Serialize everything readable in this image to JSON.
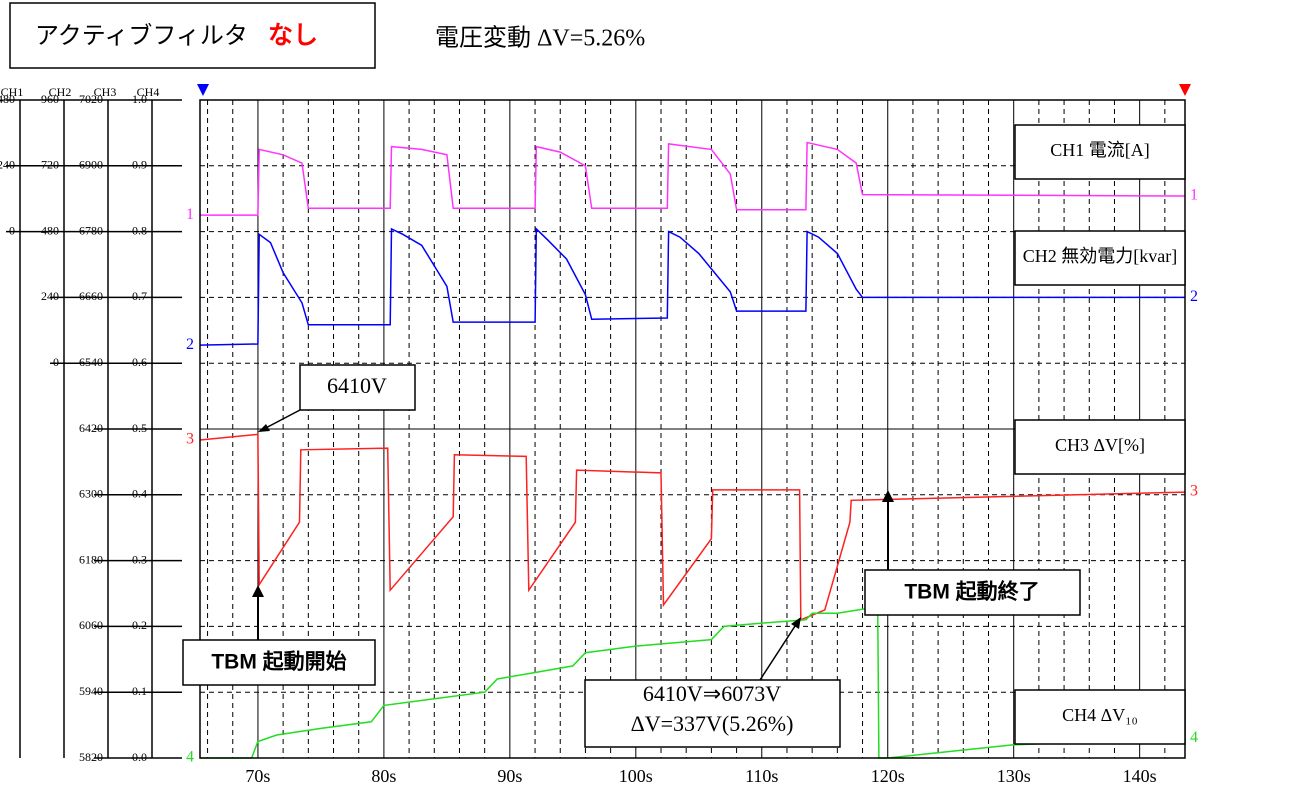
{
  "header": {
    "label": "アクティブフィルタ",
    "state": "なし",
    "summary": "電圧変動 ΔV=5.26%"
  },
  "chart_data": {
    "type": "line",
    "xlim": [
      65.4,
      143.6
    ],
    "xticks": [
      {
        "value": 70,
        "label": "70s"
      },
      {
        "value": 80,
        "label": "80s"
      },
      {
        "value": 90,
        "label": "90s"
      },
      {
        "value": 100,
        "label": "100s"
      },
      {
        "value": 110,
        "label": "110s"
      },
      {
        "value": 120,
        "label": "120s"
      },
      {
        "value": 130,
        "label": "130s"
      },
      {
        "value": 140,
        "label": "140s"
      }
    ],
    "grid": true,
    "series": [
      {
        "name": "CH1 電流[A]",
        "scale_label": "CH1",
        "trace_label": "1",
        "color": "#ff33ff",
        "ylim": [
          -1920,
          480
        ],
        "yticks": [
          480,
          240,
          0
        ],
        "x": [
          65.4,
          70,
          70.1,
          72,
          73.5,
          74,
          80.5,
          80.6,
          83,
          85,
          85.5,
          92,
          92.1,
          94,
          96,
          96.5,
          102.5,
          102.6,
          106,
          107.5,
          108,
          113.5,
          113.6,
          116,
          117.5,
          118,
          143.6
        ],
        "values": [
          60,
          60,
          300,
          280,
          250,
          85,
          85,
          310,
          300,
          280,
          85,
          85,
          310,
          290,
          240,
          85,
          85,
          320,
          300,
          210,
          80,
          80,
          325,
          300,
          250,
          135,
          130
        ]
      },
      {
        "name": "CH2 無効電力[kvar]",
        "scale_label": "CH2",
        "trace_label": "2",
        "color": "#0000ff",
        "ylim": [
          -1440,
          960
        ],
        "yticks": [
          960,
          720,
          480,
          240,
          0
        ],
        "x": [
          65.4,
          70,
          70.1,
          71,
          72,
          73.5,
          74,
          80.5,
          80.6,
          81.5,
          83,
          85,
          85.5,
          92,
          92.1,
          93,
          94.5,
          96,
          96.5,
          102.5,
          102.6,
          103.5,
          105,
          107.5,
          108,
          113.5,
          113.6,
          114.5,
          116,
          117.5,
          118,
          143.6
        ],
        "values": [
          66,
          70,
          470,
          440,
          330,
          220,
          140,
          140,
          490,
          470,
          430,
          280,
          150,
          150,
          490,
          450,
          380,
          250,
          160,
          165,
          480,
          460,
          400,
          260,
          190,
          190,
          480,
          460,
          400,
          270,
          240,
          240
        ]
      },
      {
        "name": "CH3 ΔV[%]",
        "scale_label": "CH3",
        "trace_label": "3",
        "color": "#ff2020",
        "ylim": [
          5820,
          7020
        ],
        "yticks": [
          7020,
          6900,
          6780,
          6660,
          6540,
          6420,
          6300,
          6180,
          6060,
          5940,
          5820
        ],
        "x": [
          65.4,
          69.9,
          70,
          70.1,
          73.3,
          73.4,
          80.3,
          80.5,
          85.5,
          85.6,
          91.3,
          91.5,
          95.2,
          95.3,
          102,
          102.2,
          106,
          106.1,
          113,
          113.1,
          115,
          117,
          117.1,
          143.6
        ],
        "values": [
          6400,
          6410,
          6410,
          6136,
          6250,
          6382,
          6385,
          6126,
          6260,
          6373,
          6370,
          6126,
          6250,
          6345,
          6340,
          6099,
          6220,
          6309,
          6309,
          6072,
          6090,
          6250,
          6290,
          6305
        ]
      },
      {
        "name": "CH4 ΔV₁₀",
        "scale_label": "CH4",
        "trace_label": "4",
        "color": "#22dd22",
        "ylim": [
          0,
          1
        ],
        "yticks": [
          {
            "value": 1,
            "label": "1.0"
          },
          0.9,
          0.8,
          0.7,
          0.6,
          0.5,
          0.4,
          0.3,
          0.2,
          0.1,
          {
            "value": 0,
            "label": "0.0"
          }
        ],
        "x": [
          65.4,
          69.5,
          70,
          71.5,
          75,
          79,
          80,
          84,
          88,
          89,
          92,
          95,
          96,
          100,
          103,
          106,
          107,
          110,
          113.5,
          114,
          116,
          119.2,
          119.3,
          120,
          130,
          143.6
        ],
        "values": [
          0,
          0,
          0.025,
          0.035,
          0.045,
          0.055,
          0.08,
          0.09,
          0.1,
          0.12,
          0.13,
          0.14,
          0.16,
          0.17,
          0.175,
          0.18,
          0.2,
          0.205,
          0.21,
          0.22,
          0.22,
          0.23,
          0,
          0,
          0.02,
          0.03
        ]
      }
    ],
    "annotations": [
      "6410V",
      "TBM 起動開始",
      "TBM 起動終了",
      "6410V⇒6073V",
      "ΔV=337V(5.26%)"
    ]
  }
}
